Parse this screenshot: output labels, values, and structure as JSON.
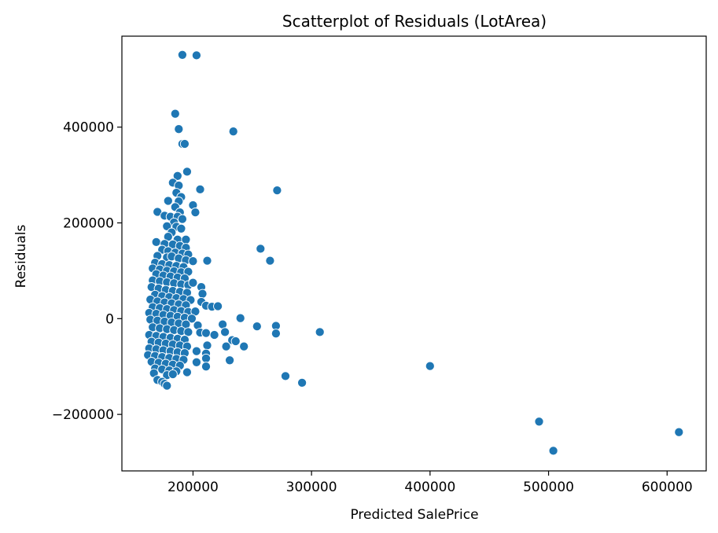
{
  "chart_data": {
    "type": "scatter",
    "title": "Scatterplot of Residuals (LotArea)",
    "xlabel": "Predicted SalePrice",
    "ylabel": "Residuals",
    "xlim": [
      140000,
      633000
    ],
    "ylim": [
      -318000,
      590000
    ],
    "xticks": [
      {
        "value": 200000,
        "label": "200000"
      },
      {
        "value": 300000,
        "label": "300000"
      },
      {
        "value": 400000,
        "label": "400000"
      },
      {
        "value": 500000,
        "label": "500000"
      },
      {
        "value": 600000,
        "label": "600000"
      }
    ],
    "yticks": [
      {
        "value": -200000,
        "label": "−200000"
      },
      {
        "value": 0,
        "label": "0"
      },
      {
        "value": 200000,
        "label": "200000"
      },
      {
        "value": 400000,
        "label": "400000"
      }
    ],
    "grid": false,
    "color": "#1f77b4",
    "points": [
      [
        191000,
        551000
      ],
      [
        203000,
        550000
      ],
      [
        185000,
        428000
      ],
      [
        188000,
        396000
      ],
      [
        234000,
        391000
      ],
      [
        191000,
        365000
      ],
      [
        193000,
        365000
      ],
      [
        195000,
        307000
      ],
      [
        187000,
        298000
      ],
      [
        183000,
        284000
      ],
      [
        188000,
        278000
      ],
      [
        186000,
        263000
      ],
      [
        206000,
        270000
      ],
      [
        271000,
        268000
      ],
      [
        190000,
        254000
      ],
      [
        179000,
        246000
      ],
      [
        188000,
        245000
      ],
      [
        200000,
        237000
      ],
      [
        185000,
        233000
      ],
      [
        170000,
        223000
      ],
      [
        189000,
        222000
      ],
      [
        202000,
        222000
      ],
      [
        176000,
        215000
      ],
      [
        181000,
        213000
      ],
      [
        187000,
        213000
      ],
      [
        191000,
        208000
      ],
      [
        184000,
        201000
      ],
      [
        178000,
        193000
      ],
      [
        186000,
        192000
      ],
      [
        190000,
        188000
      ],
      [
        182000,
        180000
      ],
      [
        179000,
        171000
      ],
      [
        187000,
        165000
      ],
      [
        194000,
        165000
      ],
      [
        169000,
        160000
      ],
      [
        176000,
        156000
      ],
      [
        183000,
        155000
      ],
      [
        189000,
        152000
      ],
      [
        194000,
        148000
      ],
      [
        257000,
        146000
      ],
      [
        174000,
        144000
      ],
      [
        179000,
        141000
      ],
      [
        185000,
        138000
      ],
      [
        191000,
        136000
      ],
      [
        196000,
        134000
      ],
      [
        170000,
        131000
      ],
      [
        178000,
        128000
      ],
      [
        182000,
        130000
      ],
      [
        188000,
        126000
      ],
      [
        194000,
        122000
      ],
      [
        200000,
        120000
      ],
      [
        212000,
        121000
      ],
      [
        265000,
        121000
      ],
      [
        168000,
        117000
      ],
      [
        174000,
        114000
      ],
      [
        180000,
        112000
      ],
      [
        186000,
        110000
      ],
      [
        192000,
        108000
      ],
      [
        166000,
        105000
      ],
      [
        172000,
        103000
      ],
      [
        178000,
        100000
      ],
      [
        184000,
        99000
      ],
      [
        190000,
        97000
      ],
      [
        196000,
        98000
      ],
      [
        169000,
        93000
      ],
      [
        175000,
        90000
      ],
      [
        181000,
        88000
      ],
      [
        187000,
        86000
      ],
      [
        193000,
        84000
      ],
      [
        166000,
        80000
      ],
      [
        172000,
        78000
      ],
      [
        178000,
        76000
      ],
      [
        184000,
        74000
      ],
      [
        190000,
        72000
      ],
      [
        196000,
        70000
      ],
      [
        200000,
        75000
      ],
      [
        207000,
        66000
      ],
      [
        165000,
        66000
      ],
      [
        171000,
        63000
      ],
      [
        177000,
        60000
      ],
      [
        183000,
        58000
      ],
      [
        189000,
        56000
      ],
      [
        195000,
        54000
      ],
      [
        208000,
        52000
      ],
      [
        168000,
        50000
      ],
      [
        174000,
        47000
      ],
      [
        180000,
        45000
      ],
      [
        186000,
        43000
      ],
      [
        192000,
        41000
      ],
      [
        198000,
        39000
      ],
      [
        164000,
        40000
      ],
      [
        170000,
        36000
      ],
      [
        176000,
        34000
      ],
      [
        182000,
        32000
      ],
      [
        188000,
        30000
      ],
      [
        194000,
        28000
      ],
      [
        207000,
        35000
      ],
      [
        211000,
        27000
      ],
      [
        216000,
        25000
      ],
      [
        221000,
        26000
      ],
      [
        166000,
        24000
      ],
      [
        172000,
        22000
      ],
      [
        178000,
        20000
      ],
      [
        184000,
        18000
      ],
      [
        190000,
        16000
      ],
      [
        196000,
        14000
      ],
      [
        202000,
        15000
      ],
      [
        163000,
        12000
      ],
      [
        169000,
        10000
      ],
      [
        175000,
        8000
      ],
      [
        181000,
        6000
      ],
      [
        187000,
        4000
      ],
      [
        193000,
        2000
      ],
      [
        199000,
        0
      ],
      [
        240000,
        1000
      ],
      [
        164000,
        -2000
      ],
      [
        170000,
        -4000
      ],
      [
        176000,
        -6000
      ],
      [
        182000,
        -8000
      ],
      [
        188000,
        -10000
      ],
      [
        194000,
        -12000
      ],
      [
        204000,
        -14000
      ],
      [
        225000,
        -12000
      ],
      [
        254000,
        -16000
      ],
      [
        270000,
        -15000
      ],
      [
        166000,
        -18000
      ],
      [
        172000,
        -20000
      ],
      [
        178000,
        -22000
      ],
      [
        184000,
        -24000
      ],
      [
        190000,
        -26000
      ],
      [
        196000,
        -28000
      ],
      [
        206000,
        -29000
      ],
      [
        211000,
        -30000
      ],
      [
        227000,
        -28000
      ],
      [
        270000,
        -31000
      ],
      [
        307000,
        -28000
      ],
      [
        163000,
        -34000
      ],
      [
        169000,
        -36000
      ],
      [
        175000,
        -38000
      ],
      [
        181000,
        -40000
      ],
      [
        187000,
        -42000
      ],
      [
        193000,
        -44000
      ],
      [
        218000,
        -34000
      ],
      [
        233000,
        -45000
      ],
      [
        236000,
        -47000
      ],
      [
        165000,
        -48000
      ],
      [
        171000,
        -50000
      ],
      [
        177000,
        -52000
      ],
      [
        183000,
        -54000
      ],
      [
        189000,
        -56000
      ],
      [
        195000,
        -58000
      ],
      [
        212000,
        -56000
      ],
      [
        228000,
        -58000
      ],
      [
        243000,
        -58000
      ],
      [
        163000,
        -62000
      ],
      [
        169000,
        -64000
      ],
      [
        175000,
        -66000
      ],
      [
        181000,
        -68000
      ],
      [
        187000,
        -70000
      ],
      [
        193000,
        -72000
      ],
      [
        203000,
        -68000
      ],
      [
        211000,
        -73000
      ],
      [
        162000,
        -76000
      ],
      [
        168000,
        -78000
      ],
      [
        174000,
        -80000
      ],
      [
        180000,
        -82000
      ],
      [
        186000,
        -84000
      ],
      [
        192000,
        -86000
      ],
      [
        211000,
        -83000
      ],
      [
        231000,
        -87000
      ],
      [
        165000,
        -90000
      ],
      [
        171000,
        -92000
      ],
      [
        177000,
        -94000
      ],
      [
        183000,
        -96000
      ],
      [
        189000,
        -98000
      ],
      [
        203000,
        -91000
      ],
      [
        211000,
        -100000
      ],
      [
        400000,
        -99000
      ],
      [
        168000,
        -104000
      ],
      [
        174000,
        -106000
      ],
      [
        180000,
        -108000
      ],
      [
        186000,
        -110000
      ],
      [
        195000,
        -112000
      ],
      [
        167000,
        -114000
      ],
      [
        178000,
        -118000
      ],
      [
        183000,
        -116000
      ],
      [
        278000,
        -120000
      ],
      [
        170000,
        -128000
      ],
      [
        174000,
        -132000
      ],
      [
        176000,
        -136000
      ],
      [
        178000,
        -140000
      ],
      [
        292000,
        -134000
      ],
      [
        492000,
        -215000
      ],
      [
        610000,
        -237000
      ],
      [
        504000,
        -276000
      ]
    ]
  }
}
